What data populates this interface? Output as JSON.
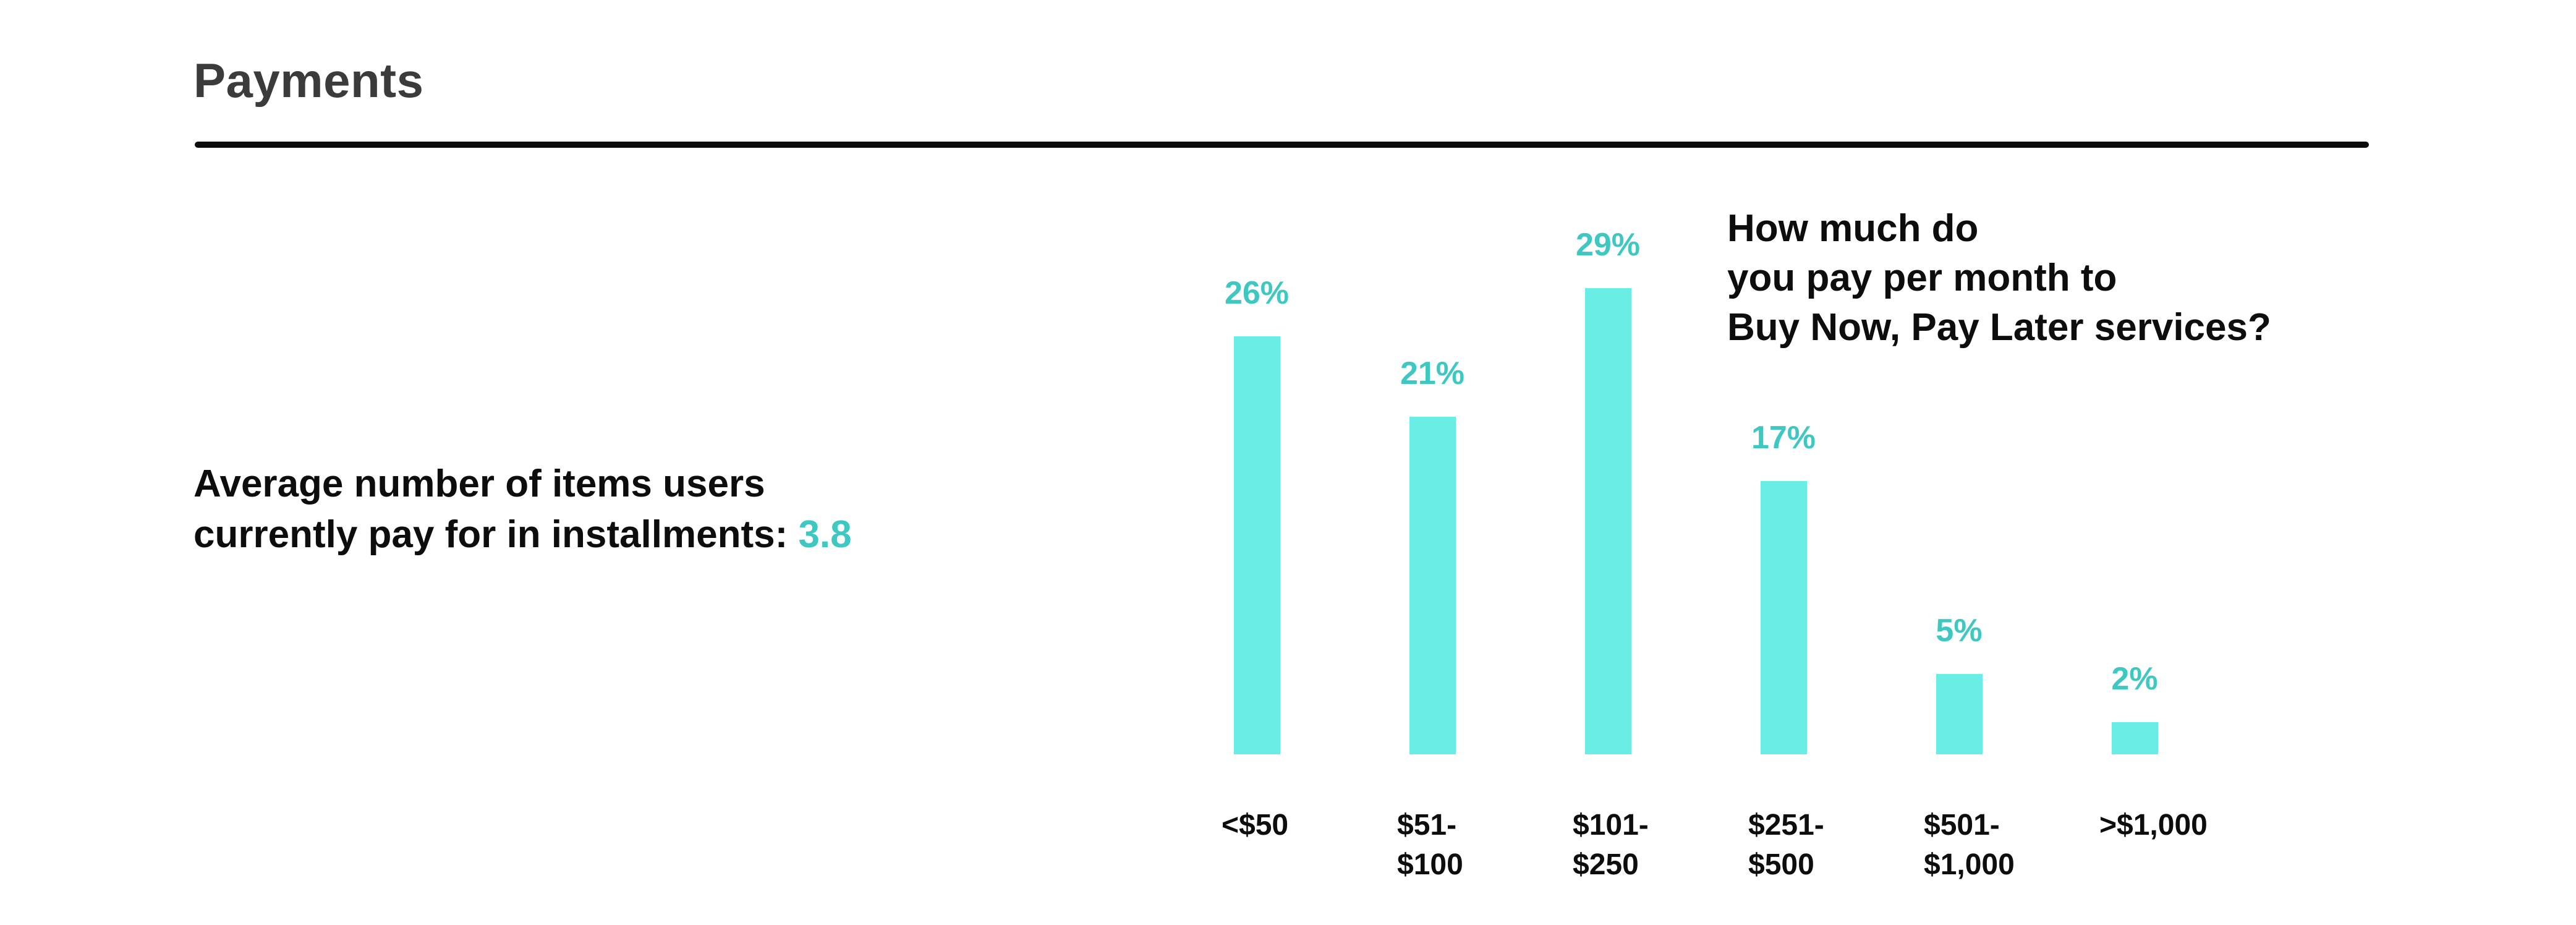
{
  "page": {
    "section_title": "Payments",
    "accent_text_color": "#3fc7c1",
    "bar_fill_color": "#69ede4",
    "heading_color": "#3b3b3b",
    "text_color": "#0d0d0d"
  },
  "stat": {
    "line1": "Average number of items users",
    "line2_prefix": "currently pay for in installments: ",
    "value": "3.8"
  },
  "chart_data": {
    "type": "bar",
    "title": "How much do\nyou pay per month to\nBuy Now, Pay Later services?",
    "categories": [
      "<$50",
      "$51-\n$100",
      "$101-\n$250",
      "$251-\n$500",
      "$501-\n$1,000",
      ">$1,000"
    ],
    "values": [
      26,
      21,
      29,
      17,
      5,
      2
    ],
    "value_labels": [
      "26%",
      "21%",
      "29%",
      "17%",
      "5%",
      "2%"
    ],
    "unit": "%",
    "ylim": [
      0,
      30
    ],
    "grid": false,
    "legend": "none",
    "xlabel": "",
    "ylabel": "",
    "bar_color": "#69ede4",
    "value_label_color": "#3fc7c1"
  }
}
